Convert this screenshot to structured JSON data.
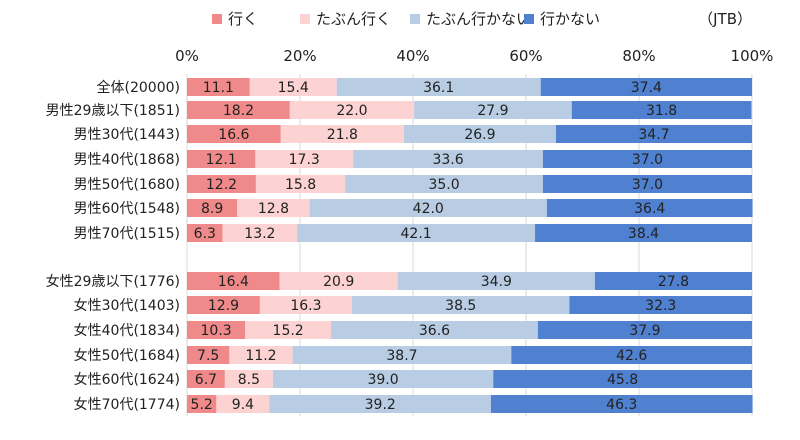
{
  "chart_data": {
    "type": "bar",
    "orientation": "horizontal",
    "stacked": true,
    "percent_stacked": true,
    "source_note": "（JTB）",
    "categories": [
      "全体(20000)",
      "男性29歳以下(1851)",
      "男性30代(1443)",
      "男性40代(1868)",
      "男性50代(1680)",
      "男性60代(1548)",
      "男性70代(1515)",
      "女性29歳以下(1776)",
      "女性30代(1403)",
      "女性40代(1834)",
      "女性50代(1684)",
      "女性60代(1624)",
      "女性70代(1774)"
    ],
    "value_labels": [
      [
        "11.1",
        "15.4",
        "36.1",
        "37.4"
      ],
      [
        "18.2",
        "22.0",
        "27.9",
        "31.8"
      ],
      [
        "16.6",
        "21.8",
        "26.9",
        "34.7"
      ],
      [
        "12.1",
        "17.3",
        "33.6",
        "37.0"
      ],
      [
        "12.2",
        "15.8",
        "35.0",
        "37.0"
      ],
      [
        "8.9",
        "12.8",
        "42.0",
        "36.4"
      ],
      [
        "6.3",
        "13.2",
        "42.1",
        "38.4"
      ],
      [
        "16.4",
        "20.9",
        "34.9",
        "27.8"
      ],
      [
        "12.9",
        "16.3",
        "38.5",
        "32.3"
      ],
      [
        "10.3",
        "15.2",
        "36.6",
        "37.9"
      ],
      [
        "7.5",
        "11.2",
        "38.7",
        "42.6"
      ],
      [
        "6.7",
        "8.5",
        "39.0",
        "45.8"
      ],
      [
        "5.2",
        "9.4",
        "39.2",
        "46.3"
      ]
    ],
    "series": [
      {
        "name": "行く",
        "color": "#f08a8a",
        "values": [
          11.1,
          18.2,
          16.6,
          12.1,
          12.2,
          8.9,
          6.3,
          16.4,
          12.9,
          10.3,
          7.5,
          6.7,
          5.2
        ]
      },
      {
        "name": "たぶん行く",
        "color": "#fcd2d2",
        "values": [
          15.4,
          22.0,
          21.8,
          17.3,
          15.8,
          12.8,
          13.2,
          20.9,
          16.3,
          15.2,
          11.2,
          8.5,
          9.4
        ]
      },
      {
        "name": "たぶん行かない",
        "color": "#b8cce4",
        "values": [
          36.1,
          27.9,
          26.9,
          33.6,
          35.0,
          42.0,
          42.1,
          34.9,
          38.5,
          36.6,
          38.7,
          39.0,
          39.2
        ]
      },
      {
        "name": "行かない",
        "color": "#4f81d0",
        "values": [
          37.4,
          31.8,
          34.7,
          37.0,
          37.0,
          36.4,
          38.4,
          27.8,
          32.3,
          37.9,
          42.6,
          45.8,
          46.3
        ]
      }
    ],
    "xlim": [
      0,
      100
    ],
    "x_ticks": [
      "0%",
      "20%",
      "40%",
      "60%",
      "80%",
      "100%"
    ],
    "grid": true,
    "legend_position": "top"
  }
}
